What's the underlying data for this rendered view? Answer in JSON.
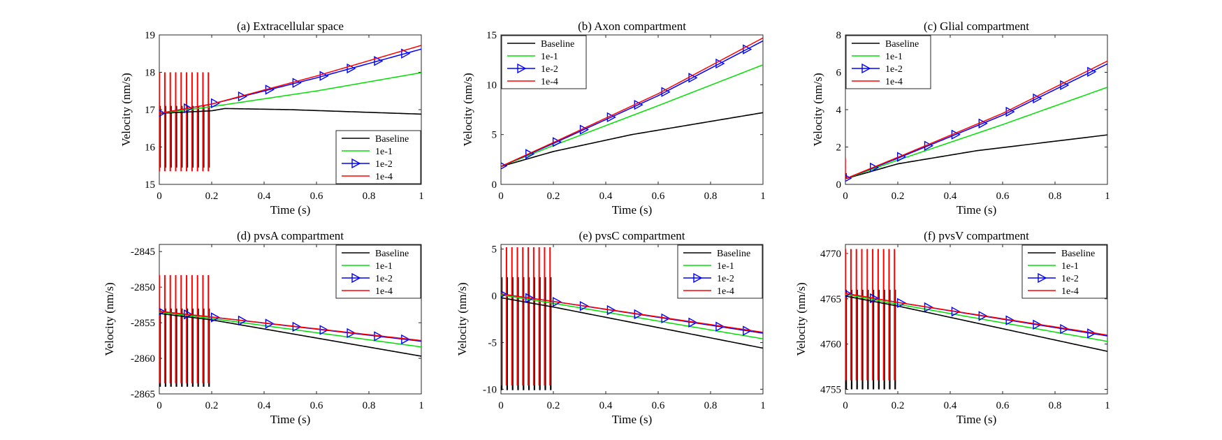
{
  "figure": {
    "colors": {
      "baseline": "#000000",
      "1e-1": "#00e000",
      "1e-2": "#0000ff",
      "1e-4": "#ff0000"
    },
    "legend_labels": [
      "Baseline",
      "1e-1",
      "1e-2",
      "1e-4"
    ]
  },
  "chart_data": [
    {
      "type": "line",
      "title": "(a) Extracellular space",
      "xlabel": "Time (s)",
      "ylabel": "Velocity (nm/s)",
      "xlim": [
        0,
        1
      ],
      "ylim": [
        15,
        19
      ],
      "xticks": [
        0,
        0.2,
        0.4,
        0.6,
        0.8,
        1
      ],
      "xtick_labels": [
        "0",
        "0.2",
        "0.4",
        "0.6",
        "0.8",
        "1"
      ],
      "yticks": [
        15,
        16,
        17,
        18,
        19
      ],
      "ytick_labels": [
        "15",
        "16",
        "17",
        "18",
        "19"
      ],
      "legend_location": "bottom-right",
      "pulses": {
        "count": 10,
        "start": 0.003,
        "end": 0.19,
        "red_low": 15.35,
        "red_high": 18.0,
        "black_low": 15.45,
        "black_high": 17.1
      },
      "series": [
        {
          "name": "Baseline",
          "x": [
            0,
            0.2,
            0.25,
            0.5,
            1
          ],
          "values": [
            16.9,
            16.97,
            17.03,
            17.0,
            16.88
          ]
        },
        {
          "name": "1e-1",
          "x": [
            0,
            0.2,
            0.6,
            1
          ],
          "values": [
            16.9,
            17.08,
            17.5,
            17.99
          ]
        },
        {
          "name": "1e-2",
          "x": [
            0,
            0.2,
            0.6,
            1
          ],
          "values": [
            16.9,
            17.15,
            17.85,
            18.62
          ]
        },
        {
          "name": "1e-4",
          "x": [
            0,
            0.2,
            0.6,
            1
          ],
          "values": [
            16.9,
            17.15,
            17.9,
            18.72
          ]
        }
      ]
    },
    {
      "type": "line",
      "title": "(b) Axon compartment",
      "xlabel": "Time (s)",
      "ylabel": "Velocity (nm/s)",
      "xlim": [
        0,
        1
      ],
      "ylim": [
        0,
        15
      ],
      "xticks": [
        0,
        0.2,
        0.4,
        0.6,
        0.8,
        1
      ],
      "xtick_labels": [
        "0",
        "0.2",
        "0.4",
        "0.6",
        "0.8",
        "1"
      ],
      "yticks": [
        0,
        5,
        10,
        15
      ],
      "ytick_labels": [
        "0",
        "5",
        "10",
        "15"
      ],
      "legend_location": "top-left",
      "pulses": null,
      "series": [
        {
          "name": "Baseline",
          "x": [
            0,
            0.2,
            0.5,
            1
          ],
          "values": [
            1.8,
            3.3,
            5.0,
            7.2
          ]
        },
        {
          "name": "1e-1",
          "x": [
            0,
            0.2,
            0.6,
            1
          ],
          "values": [
            1.8,
            3.9,
            7.9,
            12.0
          ]
        },
        {
          "name": "1e-2",
          "x": [
            0,
            0.2,
            0.6,
            1
          ],
          "values": [
            1.8,
            4.1,
            8.9,
            14.4
          ]
        },
        {
          "name": "1e-4",
          "x": [
            0,
            0.2,
            0.6,
            1
          ],
          "values": [
            1.8,
            4.2,
            9.1,
            14.7
          ]
        }
      ]
    },
    {
      "type": "line",
      "title": "(c) Glial compartment",
      "xlabel": "Time (s)",
      "ylabel": "Velocity (nm/s)",
      "xlim": [
        0,
        1
      ],
      "ylim": [
        0,
        8
      ],
      "xticks": [
        0,
        0.2,
        0.4,
        0.6,
        0.8,
        1
      ],
      "xtick_labels": [
        "0",
        "0.2",
        "0.4",
        "0.6",
        "0.8",
        "1"
      ],
      "yticks": [
        0,
        2,
        4,
        6,
        8
      ],
      "ytick_labels": [
        "0",
        "2",
        "4",
        "6",
        "8"
      ],
      "legend_location": "top-left",
      "pulses": {
        "count": 1,
        "start": 0.002,
        "end": 0.002,
        "red_low": 0.3,
        "red_high": 1.4,
        "black_low": 0.3,
        "black_high": 0.6
      },
      "series": [
        {
          "name": "Baseline",
          "x": [
            0,
            0.2,
            0.5,
            1
          ],
          "values": [
            0.3,
            1.1,
            1.8,
            2.65
          ]
        },
        {
          "name": "1e-1",
          "x": [
            0,
            0.2,
            0.6,
            1
          ],
          "values": [
            0.3,
            1.3,
            3.2,
            5.2
          ]
        },
        {
          "name": "1e-2",
          "x": [
            0,
            0.2,
            0.6,
            1
          ],
          "values": [
            0.3,
            1.4,
            3.7,
            6.45
          ]
        },
        {
          "name": "1e-4",
          "x": [
            0,
            0.2,
            0.6,
            1
          ],
          "values": [
            0.3,
            1.45,
            3.8,
            6.6
          ]
        }
      ]
    },
    {
      "type": "line",
      "title": "(d) pvsA compartment",
      "xlabel": "Time (s)",
      "ylabel": "Velocity (nm/s)",
      "xlim": [
        0,
        1
      ],
      "ylim": [
        -2865,
        -2844
      ],
      "xticks": [
        0,
        0.2,
        0.4,
        0.6,
        0.8,
        1
      ],
      "xtick_labels": [
        "0",
        "0.2",
        "0.4",
        "0.6",
        "0.8",
        "1"
      ],
      "yticks": [
        -2865,
        -2860,
        -2855,
        -2850,
        -2845
      ],
      "ytick_labels": [
        "-2865",
        "-2860",
        "-2855",
        "-2850",
        "-2845"
      ],
      "legend_location": "top-right",
      "pulses": {
        "count": 10,
        "start": 0.003,
        "end": 0.19,
        "red_low": -2863.5,
        "red_high": -2848.3,
        "black_low": -2864.0,
        "black_high": -2853.0
      },
      "series": [
        {
          "name": "Baseline",
          "x": [
            0,
            0.2,
            1
          ],
          "values": [
            -2853.7,
            -2854.6,
            -2859.7
          ]
        },
        {
          "name": "1e-1",
          "x": [
            0,
            0.2,
            1
          ],
          "values": [
            -2853.5,
            -2854.4,
            -2858.4
          ]
        },
        {
          "name": "1e-2",
          "x": [
            0,
            0.2,
            1
          ],
          "values": [
            -2853.4,
            -2854.2,
            -2857.6
          ]
        },
        {
          "name": "1e-4",
          "x": [
            0,
            0.2,
            1
          ],
          "values": [
            -2853.4,
            -2854.2,
            -2857.5
          ]
        }
      ]
    },
    {
      "type": "line",
      "title": "(e) pvsC compartment",
      "xlabel": "Time (s)",
      "ylabel": "Velocity (nm/s)",
      "xlim": [
        0,
        1
      ],
      "ylim": [
        -10.5,
        5.5
      ],
      "xticks": [
        0,
        0.2,
        0.4,
        0.6,
        0.8,
        1
      ],
      "xtick_labels": [
        "0",
        "0.2",
        "0.4",
        "0.6",
        "0.8",
        "1"
      ],
      "yticks": [
        -10,
        -5,
        0,
        5
      ],
      "ytick_labels": [
        "-10",
        "-5",
        "0",
        "5"
      ],
      "legend_location": "top-right",
      "pulses": {
        "count": 10,
        "start": 0.003,
        "end": 0.19,
        "red_low": -9.6,
        "red_high": 5.2,
        "black_low": -10.1,
        "black_high": 2.0
      },
      "series": [
        {
          "name": "Baseline",
          "x": [
            0,
            0.2,
            1
          ],
          "values": [
            -0.2,
            -1.2,
            -5.6
          ]
        },
        {
          "name": "1e-1",
          "x": [
            0,
            0.2,
            1
          ],
          "values": [
            0.1,
            -0.8,
            -4.6
          ]
        },
        {
          "name": "1e-2",
          "x": [
            0,
            0.2,
            1
          ],
          "values": [
            0.2,
            -0.6,
            -4.0
          ]
        },
        {
          "name": "1e-4",
          "x": [
            0,
            0.2,
            1
          ],
          "values": [
            0.2,
            -0.6,
            -3.9
          ]
        }
      ]
    },
    {
      "type": "line",
      "title": "(f) pvsV compartment",
      "xlabel": "Time (s)",
      "ylabel": "Velocity (nm/s)",
      "xlim": [
        0,
        1
      ],
      "ylim": [
        4754.5,
        4771
      ],
      "xticks": [
        0,
        0.2,
        0.4,
        0.6,
        0.8,
        1
      ],
      "xtick_labels": [
        "0",
        "0.2",
        "0.4",
        "0.6",
        "0.8",
        "1"
      ],
      "yticks": [
        4755,
        4760,
        4765,
        4770
      ],
      "ytick_labels": [
        "4755",
        "4760",
        "4765",
        "4770"
      ],
      "legend_location": "top-right",
      "pulses": {
        "count": 10,
        "start": 0.003,
        "end": 0.19,
        "red_low": 4756.0,
        "red_high": 4770.5,
        "black_low": 4755.0,
        "black_high": 4766.0
      },
      "series": [
        {
          "name": "Baseline",
          "x": [
            0,
            0.2,
            1
          ],
          "values": [
            4765.3,
            4764.2,
            4759.2
          ]
        },
        {
          "name": "1e-1",
          "x": [
            0,
            0.2,
            1
          ],
          "values": [
            4765.5,
            4764.4,
            4760.3
          ]
        },
        {
          "name": "1e-2",
          "x": [
            0,
            0.2,
            1
          ],
          "values": [
            4765.6,
            4764.6,
            4760.9
          ]
        },
        {
          "name": "1e-4",
          "x": [
            0,
            0.2,
            1
          ],
          "values": [
            4765.6,
            4764.6,
            4761.0
          ]
        }
      ]
    }
  ]
}
